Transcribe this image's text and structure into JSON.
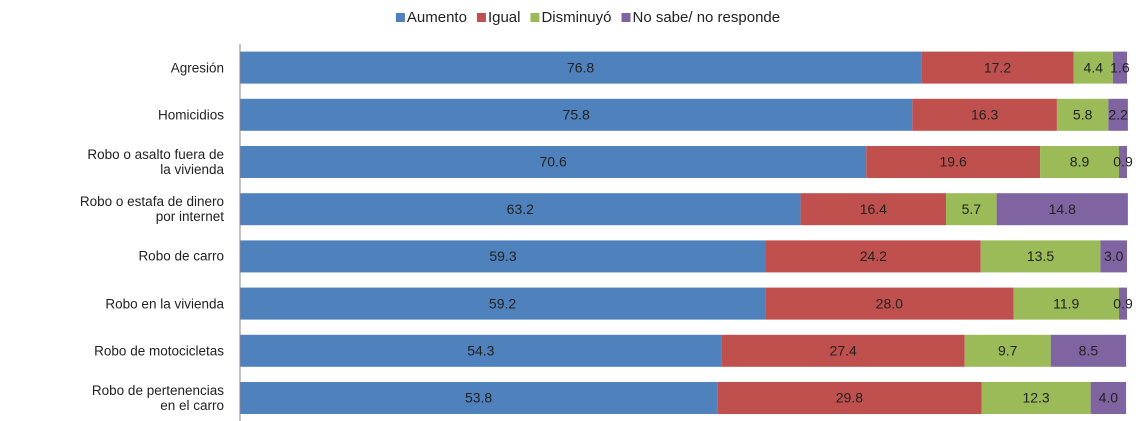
{
  "chart_data": {
    "type": "stacked_barh",
    "categories": [
      "Agresión",
      "Homicidios",
      "Robo o asalto fuera de\nla vivienda",
      "Robo o estafa de dinero\npor internet",
      "Robo de carro",
      "Robo en la vivienda",
      "Robo de motocicletas",
      "Robo de pertenencias\nen el carro"
    ],
    "series": [
      {
        "name": "Aumento",
        "color": "#4f81bd",
        "values": [
          76.8,
          75.8,
          70.6,
          63.2,
          59.3,
          59.2,
          54.3,
          53.8
        ],
        "value_labels": [
          "76.8",
          "75.8",
          "70.6",
          "63.2",
          "59.3",
          "59.2",
          "54.3",
          "53.8"
        ]
      },
      {
        "name": "Igual",
        "color": "#c0504d",
        "values": [
          17.2,
          16.3,
          19.6,
          16.4,
          24.2,
          28,
          27.4,
          29.8
        ],
        "value_labels": [
          "17.2",
          "16.3",
          "19.6",
          "16.4",
          "24.2",
          "28.0",
          "27.4",
          "29.8"
        ]
      },
      {
        "name": "Disminuyó",
        "color": "#9bbb59",
        "values": [
          4.4,
          5.8,
          8.9,
          5.7,
          13.5,
          11.9,
          9.7,
          12.3
        ],
        "value_labels": [
          "4.4",
          "5.8",
          "8.9",
          "5.7",
          "13.5",
          "11.9",
          "9.7",
          "12.3"
        ]
      },
      {
        "name": "No sabe/ no responde",
        "color": "#8064a2",
        "values": [
          1.6,
          2.2,
          0.9,
          14.8,
          3,
          0.9,
          8.5,
          4
        ],
        "value_labels": [
          "1.6",
          "2.2",
          "0.9",
          "14.8",
          "3.0",
          "0.9",
          "8.5",
          "4.0"
        ]
      }
    ],
    "xlim": [
      0,
      100
    ],
    "legend": "top"
  }
}
